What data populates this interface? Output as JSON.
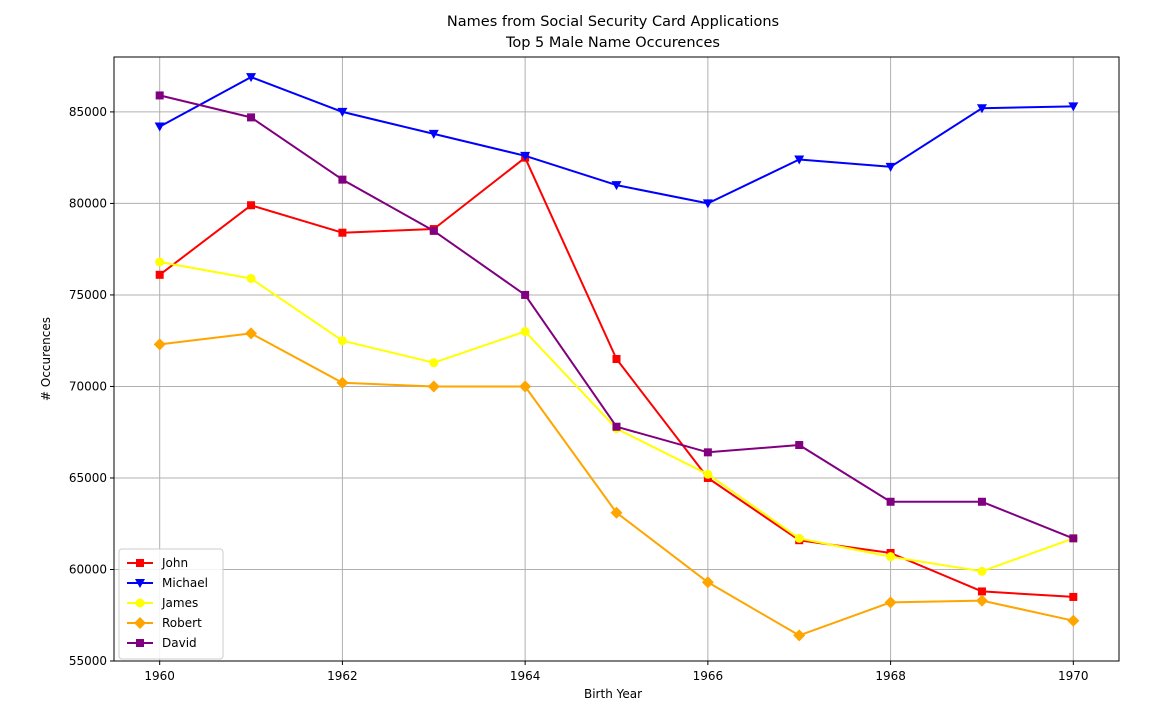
{
  "chart_data": {
    "type": "line",
    "title": "Names from Social Security Card Applications",
    "subtitle": "Top 5 Male Name Occurences",
    "xlabel": "Birth Year",
    "ylabel": "# Occurences",
    "x": [
      1960,
      1961,
      1962,
      1963,
      1964,
      1965,
      1966,
      1967,
      1968,
      1969,
      1970
    ],
    "xlim": [
      1959.5,
      1970.5
    ],
    "ylim": [
      55000,
      88000
    ],
    "x_ticks": [
      1960,
      1962,
      1964,
      1966,
      1968,
      1970
    ],
    "x_tick_labels": [
      "1960",
      "1962",
      "1964",
      "1966",
      "1968",
      "1970"
    ],
    "y_ticks": [
      55000,
      60000,
      65000,
      70000,
      75000,
      80000,
      85000
    ],
    "y_tick_labels": [
      "55000",
      "60000",
      "65000",
      "70000",
      "75000",
      "80000",
      "85000"
    ],
    "grid": true,
    "legend_position": "bottom-left",
    "series": [
      {
        "name": "John",
        "color": "#ff0000",
        "marker": "square",
        "values": [
          76100,
          79900,
          78400,
          78600,
          82500,
          71500,
          65000,
          61600,
          60900,
          58800,
          58500
        ]
      },
      {
        "name": "Michael",
        "color": "#0000ff",
        "marker": "triangle-down",
        "values": [
          84200,
          86900,
          85000,
          83800,
          82600,
          81000,
          80000,
          82400,
          82000,
          85200,
          85300
        ]
      },
      {
        "name": "James",
        "color": "#ffff00",
        "marker": "circle",
        "values": [
          76800,
          75900,
          72500,
          71300,
          73000,
          67700,
          65200,
          61700,
          60700,
          59900,
          61700
        ]
      },
      {
        "name": "Robert",
        "color": "#ffa500",
        "marker": "diamond",
        "values": [
          72300,
          72900,
          70200,
          70000,
          70000,
          63100,
          59300,
          56400,
          58200,
          58300,
          57200
        ]
      },
      {
        "name": "David",
        "color": "#800080",
        "marker": "square",
        "values": [
          85900,
          84700,
          81300,
          78500,
          75000,
          67800,
          66400,
          66800,
          63700,
          63700,
          61700
        ]
      }
    ]
  }
}
